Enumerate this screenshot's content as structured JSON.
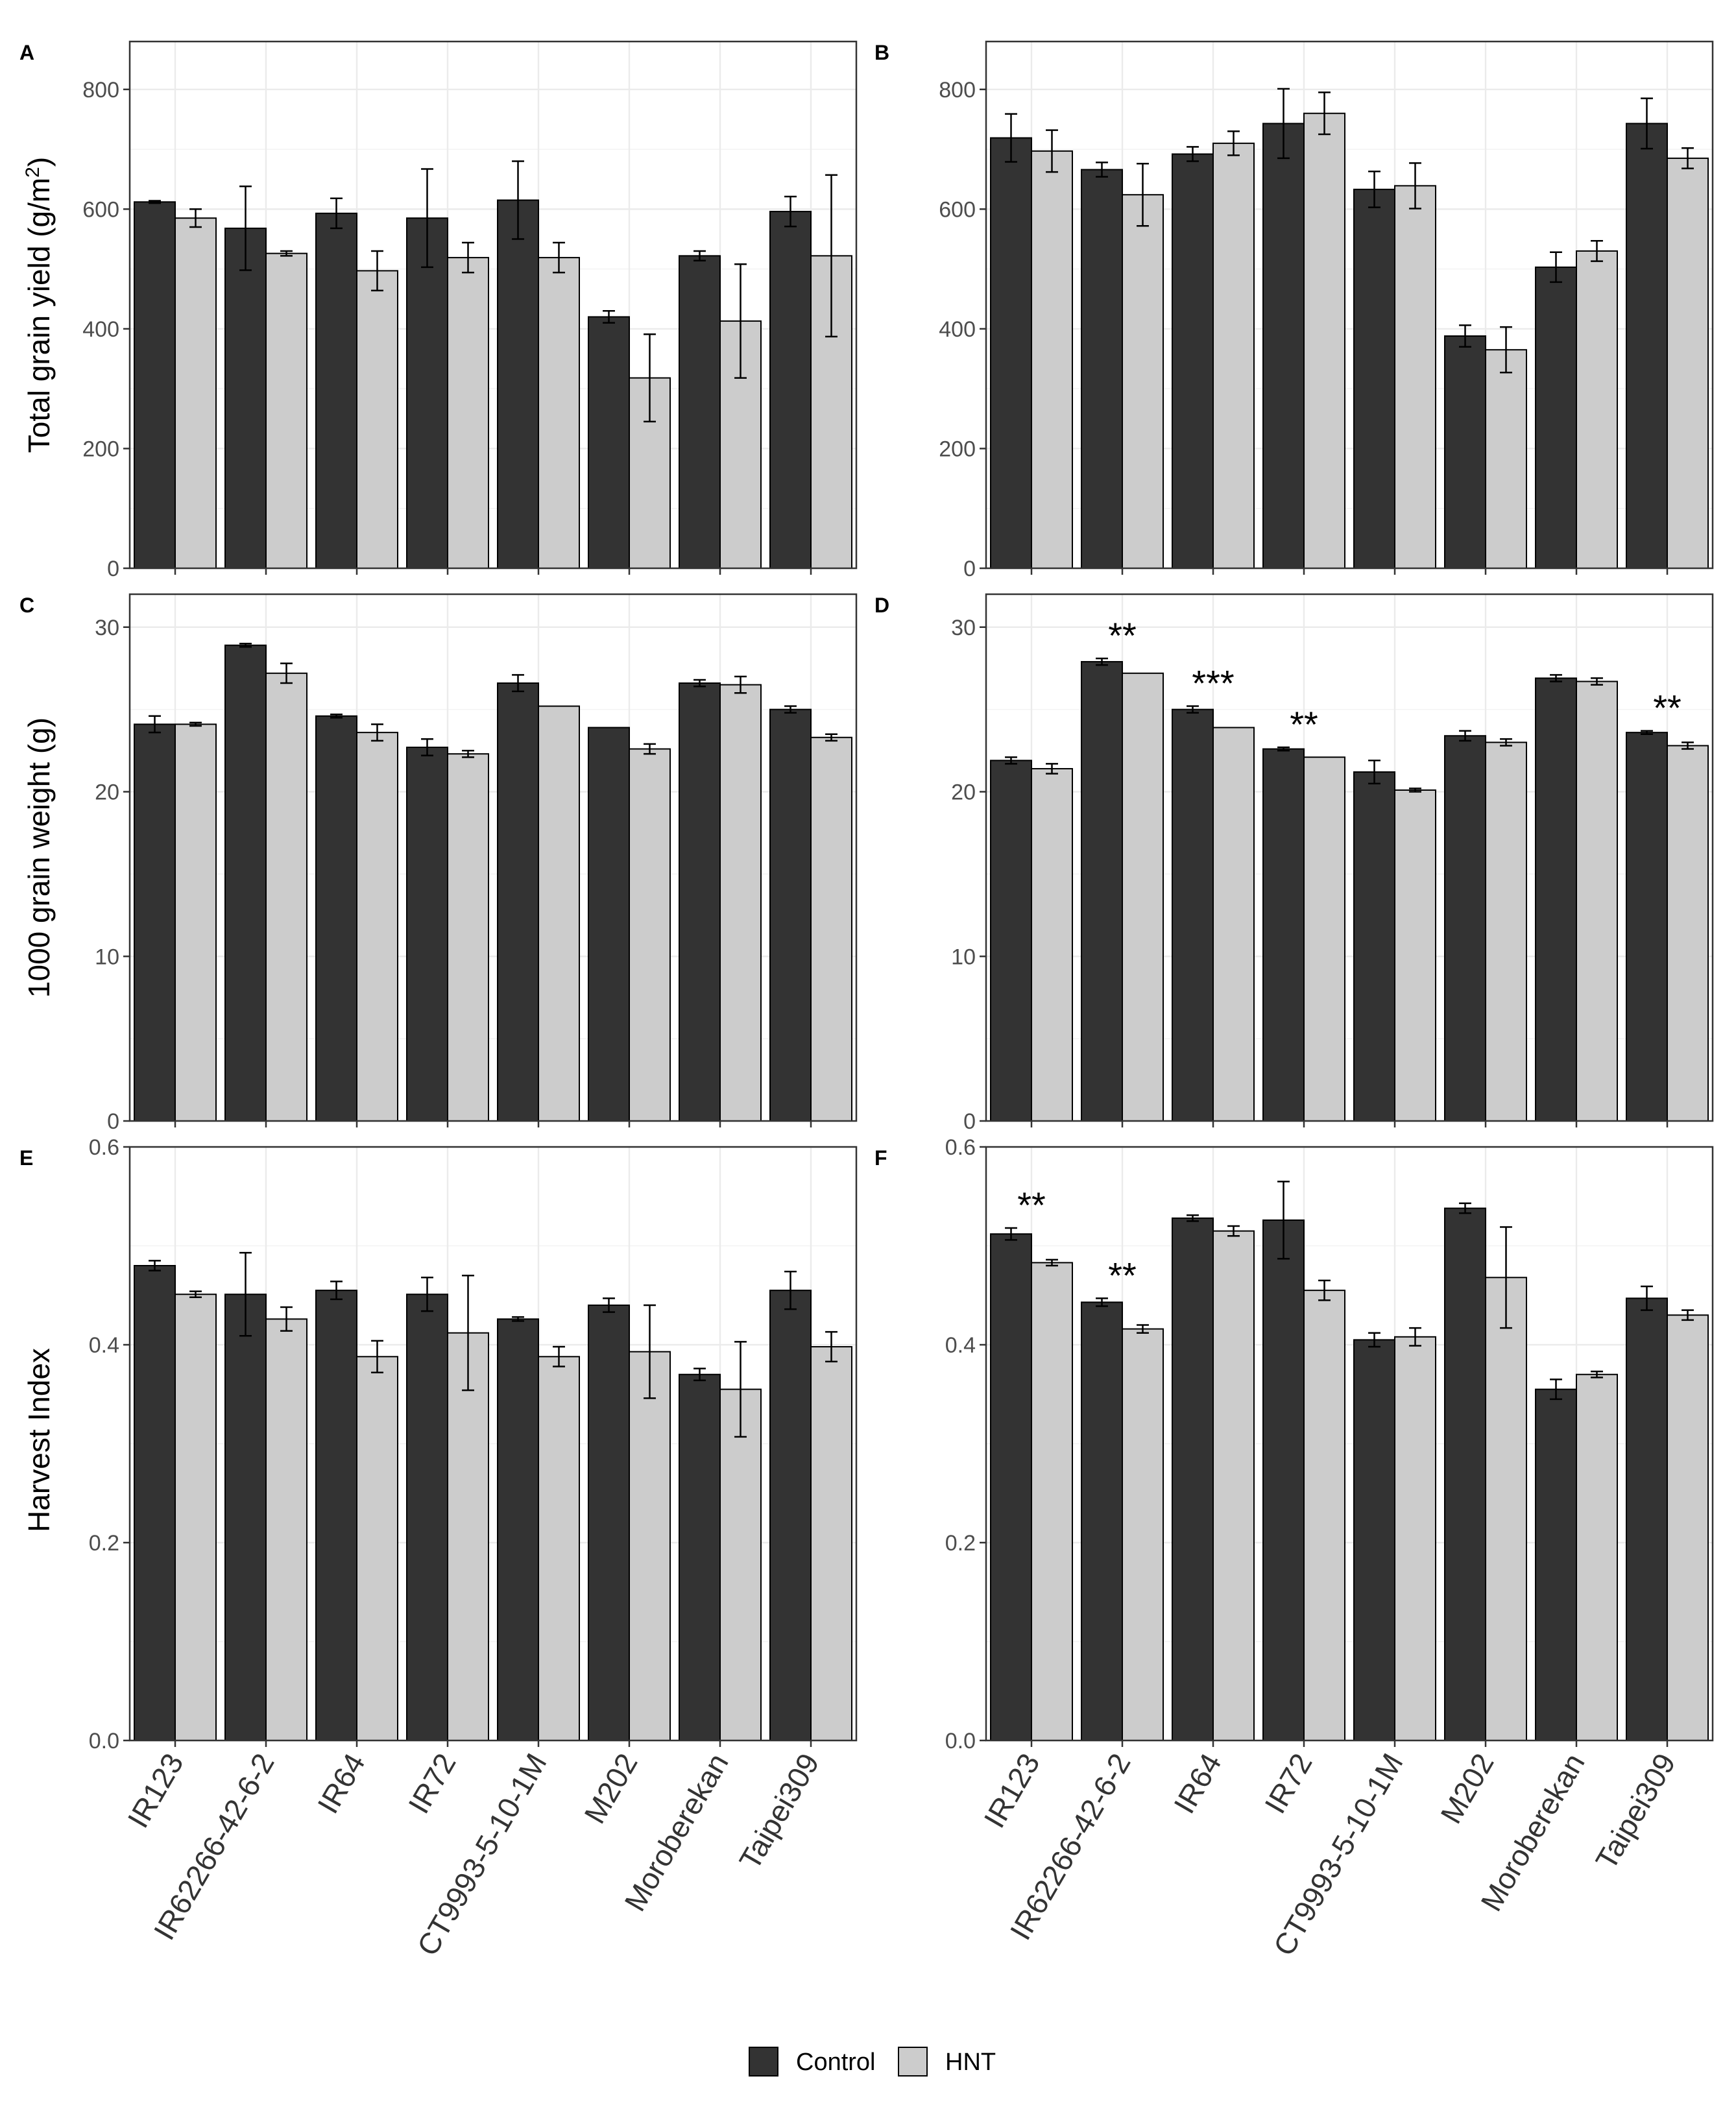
{
  "colors": {
    "control": "#333333",
    "hnt": "#cccccc",
    "grid": "#ebebeb",
    "axis": "#333333",
    "text": "#000000"
  },
  "legend": {
    "items": [
      {
        "label": "Control"
      },
      {
        "label": "HNT"
      }
    ]
  },
  "chart_data": [
    {
      "type": "bar",
      "panel": "A",
      "title": "A",
      "ylabel": "Total grain yield (g/m2)",
      "ylim": [
        0,
        880
      ],
      "yticks": [
        0,
        200,
        400,
        600,
        800
      ],
      "categories": [
        "IR123",
        "IR62266-42-6-2",
        "IR64",
        "IR72",
        "CT9993-5-10-1M",
        "M202",
        "Moroberekan",
        "Taipei309"
      ],
      "series": [
        {
          "name": "Control",
          "values": [
            612,
            568,
            593,
            585,
            615,
            420,
            522,
            596
          ],
          "errors": [
            2,
            70,
            25,
            82,
            65,
            10,
            8,
            25
          ]
        },
        {
          "name": "HNT",
          "values": [
            585,
            526,
            497,
            519,
            519,
            318,
            413,
            522
          ],
          "errors": [
            15,
            4,
            33,
            25,
            25,
            73,
            95,
            135
          ]
        }
      ],
      "annotations": []
    },
    {
      "type": "bar",
      "panel": "B",
      "title": "B",
      "ylabel": "",
      "ylim": [
        0,
        880
      ],
      "yticks": [
        0,
        200,
        400,
        600,
        800
      ],
      "categories": [
        "IR123",
        "IR62266-42-6-2",
        "IR64",
        "IR72",
        "CT9993-5-10-1M",
        "M202",
        "Moroberekan",
        "Taipei309"
      ],
      "series": [
        {
          "name": "Control",
          "values": [
            719,
            666,
            692,
            743,
            633,
            388,
            503,
            743
          ],
          "errors": [
            40,
            12,
            12,
            58,
            30,
            18,
            25,
            42
          ]
        },
        {
          "name": "HNT",
          "values": [
            697,
            624,
            710,
            760,
            639,
            365,
            530,
            685
          ],
          "errors": [
            35,
            52,
            20,
            35,
            38,
            38,
            17,
            17
          ]
        }
      ],
      "annotations": []
    },
    {
      "type": "bar",
      "panel": "C",
      "title": "C",
      "ylabel": "1000 grain weight (g)",
      "ylim": [
        0,
        32
      ],
      "yticks": [
        0,
        10,
        20,
        30
      ],
      "categories": [
        "IR123",
        "IR62266-42-6-2",
        "IR64",
        "IR72",
        "CT9993-5-10-1M",
        "M202",
        "Moroberekan",
        "Taipei309"
      ],
      "series": [
        {
          "name": "Control",
          "values": [
            24.1,
            28.9,
            24.6,
            22.7,
            26.6,
            23.9,
            26.6,
            25.0
          ],
          "errors": [
            0.5,
            0.1,
            0.1,
            0.5,
            0.5,
            0.0,
            0.2,
            0.2
          ]
        },
        {
          "name": "HNT",
          "values": [
            24.1,
            27.2,
            23.6,
            22.3,
            25.2,
            22.6,
            26.5,
            23.3
          ],
          "errors": [
            0.1,
            0.6,
            0.5,
            0.2,
            0.0,
            0.3,
            0.5,
            0.2
          ]
        }
      ],
      "annotations": []
    },
    {
      "type": "bar",
      "panel": "D",
      "title": "D",
      "ylabel": "",
      "ylim": [
        0,
        32
      ],
      "yticks": [
        0,
        10,
        20,
        30
      ],
      "categories": [
        "IR123",
        "IR62266-42-6-2",
        "IR64",
        "IR72",
        "CT9993-5-10-1M",
        "M202",
        "Moroberekan",
        "Taipei309"
      ],
      "series": [
        {
          "name": "Control",
          "values": [
            21.9,
            27.9,
            25.0,
            22.6,
            21.2,
            23.4,
            26.9,
            23.6
          ],
          "errors": [
            0.2,
            0.2,
            0.2,
            0.1,
            0.7,
            0.3,
            0.2,
            0.1
          ]
        },
        {
          "name": "HNT",
          "values": [
            21.4,
            27.2,
            23.9,
            22.1,
            20.1,
            23.0,
            26.7,
            22.8
          ],
          "errors": [
            0.3,
            0.0,
            0.0,
            0.0,
            0.1,
            0.2,
            0.2,
            0.2
          ]
        }
      ],
      "annotations": [
        {
          "category_index": 1,
          "text": "**"
        },
        {
          "category_index": 2,
          "text": "***"
        },
        {
          "category_index": 3,
          "text": "**"
        },
        {
          "category_index": 7,
          "text": "**"
        }
      ]
    },
    {
      "type": "bar",
      "panel": "E",
      "title": "E",
      "ylabel": "Harvest Index",
      "ylim": [
        0,
        0.6
      ],
      "yticks": [
        0.0,
        0.2,
        0.4,
        0.6
      ],
      "tick_format": 1,
      "categories": [
        "IR123",
        "IR62266-42-6-2",
        "IR64",
        "IR72",
        "CT9993-5-10-1M",
        "M202",
        "Moroberekan",
        "Taipei309"
      ],
      "series": [
        {
          "name": "Control",
          "values": [
            0.48,
            0.451,
            0.455,
            0.451,
            0.426,
            0.44,
            0.37,
            0.455
          ],
          "errors": [
            0.005,
            0.042,
            0.009,
            0.017,
            0.002,
            0.007,
            0.006,
            0.019
          ]
        },
        {
          "name": "HNT",
          "values": [
            0.451,
            0.426,
            0.388,
            0.412,
            0.388,
            0.393,
            0.355,
            0.398
          ],
          "errors": [
            0.003,
            0.012,
            0.016,
            0.058,
            0.01,
            0.047,
            0.048,
            0.015
          ]
        }
      ],
      "annotations": []
    },
    {
      "type": "bar",
      "panel": "F",
      "title": "F",
      "ylabel": "",
      "ylim": [
        0,
        0.6
      ],
      "yticks": [
        0.0,
        0.2,
        0.4,
        0.6
      ],
      "tick_format": 1,
      "categories": [
        "IR123",
        "IR62266-42-6-2",
        "IR64",
        "IR72",
        "CT9993-5-10-1M",
        "M202",
        "Moroberekan",
        "Taipei309"
      ],
      "series": [
        {
          "name": "Control",
          "values": [
            0.512,
            0.443,
            0.528,
            0.526,
            0.405,
            0.538,
            0.355,
            0.447
          ],
          "errors": [
            0.006,
            0.004,
            0.003,
            0.039,
            0.007,
            0.005,
            0.01,
            0.012
          ]
        },
        {
          "name": "HNT",
          "values": [
            0.483,
            0.416,
            0.515,
            0.455,
            0.408,
            0.468,
            0.37,
            0.43
          ],
          "errors": [
            0.003,
            0.004,
            0.005,
            0.01,
            0.009,
            0.051,
            0.003,
            0.005
          ]
        }
      ],
      "annotations": [
        {
          "category_index": 0,
          "text": "**"
        },
        {
          "category_index": 1,
          "text": "**"
        }
      ]
    }
  ]
}
